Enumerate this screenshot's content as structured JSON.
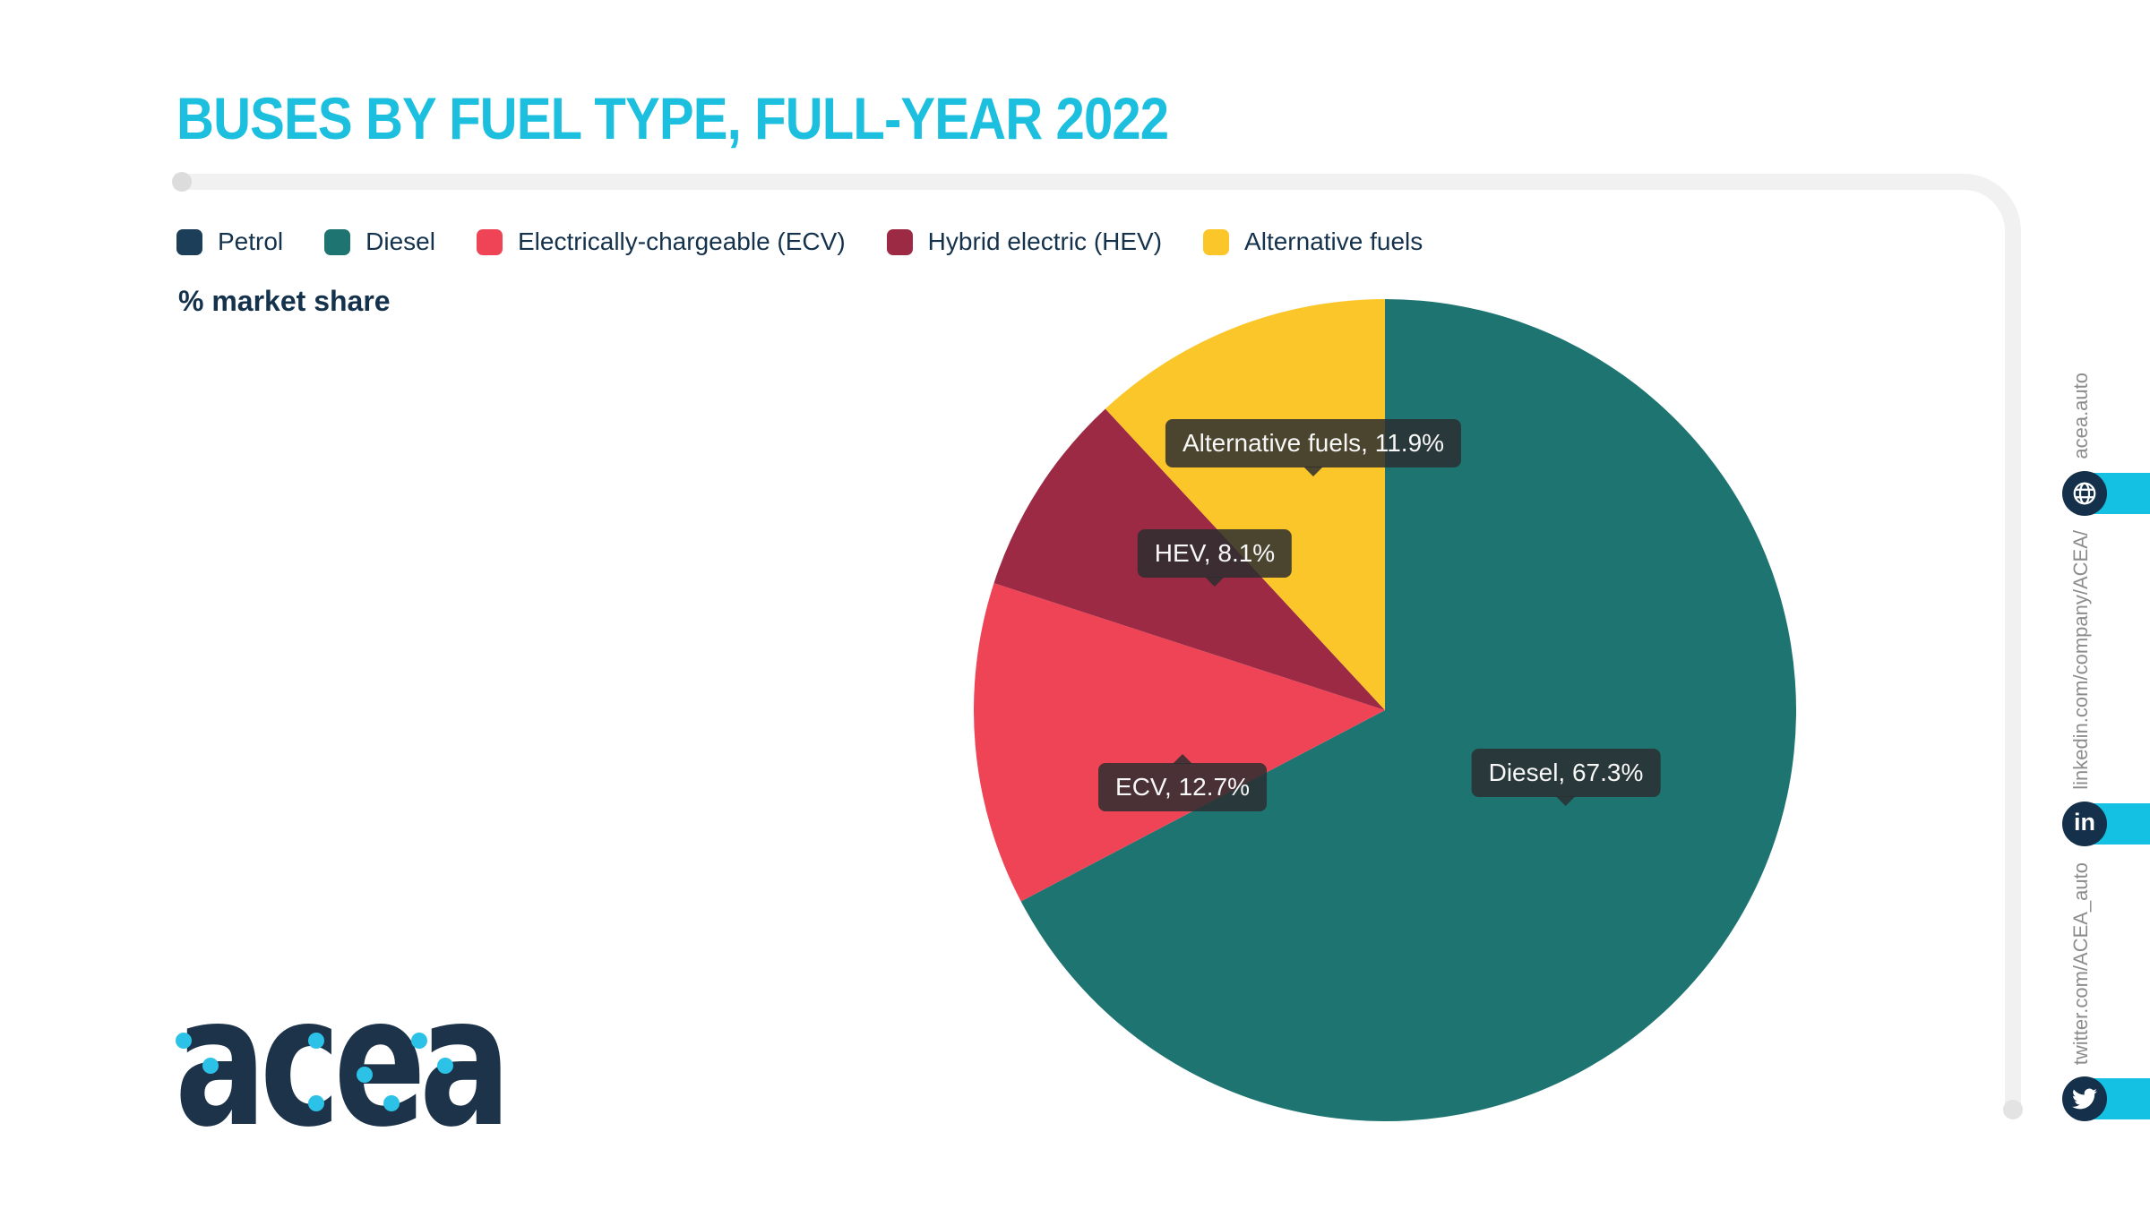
{
  "chart_data": {
    "type": "pie",
    "title": "BUSES BY FUEL TYPE, FULL-YEAR 2022",
    "value_label": "% market share",
    "legend_position": "top",
    "direction": "clockwise",
    "start_angle_deg": 0,
    "segments": [
      {
        "key": "petrol",
        "label": "Petrol",
        "value": 0.0,
        "color": "#1c3e59",
        "callout": ""
      },
      {
        "key": "diesel",
        "label": "Diesel",
        "value": 67.3,
        "color": "#1e7470",
        "callout": "Diesel, 67.3%"
      },
      {
        "key": "ecv",
        "label": "Electrically-chargeable (ECV)",
        "value": 12.7,
        "color": "#ee4456",
        "callout": "ECV, 12.7%"
      },
      {
        "key": "hev",
        "label": "Hybrid electric (HEV)",
        "value": 8.1,
        "color": "#9c2a45",
        "callout": "HEV, 8.1%"
      },
      {
        "key": "alt",
        "label": "Alternative fuels",
        "value": 11.9,
        "color": "#fbc62a",
        "callout": "Alternative fuels, 11.9%"
      }
    ]
  },
  "brand": {
    "logo_text": "acea"
  },
  "sidebar": {
    "items": [
      {
        "icon": "globe-icon",
        "label": "acea.auto"
      },
      {
        "icon": "linkedin-icon",
        "label": "linkedin.com/company/ACEA/",
        "glyph": "in"
      },
      {
        "icon": "twitter-icon",
        "label": "twitter.com/ACEA_auto"
      }
    ]
  },
  "colors": {
    "title_cyan": "#1cc0de",
    "navy_text": "#15324c",
    "accent_bar_cyan": "#15c1e2",
    "icon_circle_navy": "#14304a",
    "frame_gray": "#f1f1f1",
    "tooltip_bg": "rgba(43,46,48,0.85)"
  }
}
